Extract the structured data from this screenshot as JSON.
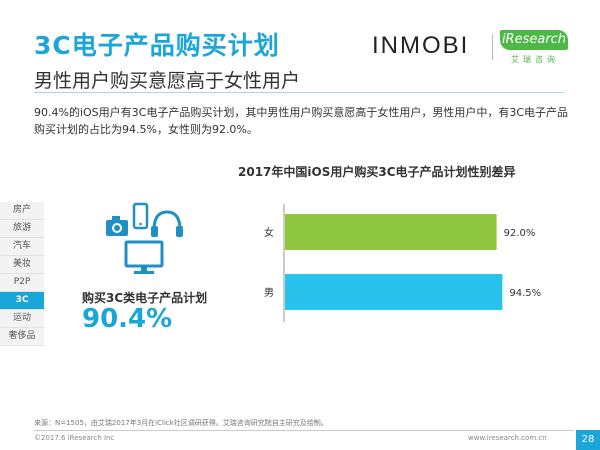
{
  "page": {
    "title": "3C电子产品购买计划",
    "subtitle": "男性用户购买意愿高于女性用户",
    "intro": "90.4%的iOS用户有3C电子产品购买计划，其中男性用户购买意愿高于女性用户，男性用户中，有3C电子产品购买计划的占比为94.5%，女性则为92.0%。",
    "logo_inmobi": "INMOBI",
    "logo_iresearch": "iResearch",
    "logo_iresearch_cn": "艾瑞咨询"
  },
  "sidenav": {
    "items": [
      "房产",
      "旅游",
      "汽车",
      "美妆",
      "P2P",
      "3C",
      "运动",
      "奢侈品"
    ],
    "active": "3C"
  },
  "summary": {
    "label": "购买3C类电子产品计划",
    "value": "90.4%"
  },
  "colors": {
    "accent": "#1aa6d8",
    "bar_female": "#8ec63f",
    "bar_male": "#29c2ec",
    "icon": "#1f8fc4"
  },
  "icons": [
    "camera-icon",
    "phone-icon",
    "headphones-icon",
    "monitor-icon"
  ],
  "chart_data": {
    "type": "bar",
    "orientation": "horizontal",
    "title": "2017年中国iOS用户购买3C电子产品计划性别差异",
    "categories": [
      "女",
      "男"
    ],
    "values": [
      92.0,
      94.5
    ],
    "value_labels": [
      "92.0%",
      "94.5%"
    ],
    "xlim": [
      0,
      100
    ],
    "xlabel": "",
    "ylabel": "",
    "grid": false
  },
  "footer": {
    "source": "来源：N=1505，由艾瑞2017年3月在iClick社区调研获得。艾瑞咨询研究院自主研究及绘制。",
    "copyright": "©2017.6 iResearch Inc",
    "url": "www.iresearch.com.cn",
    "page_number": "28"
  }
}
